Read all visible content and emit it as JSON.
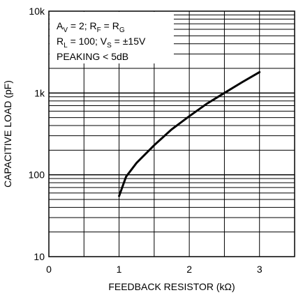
{
  "chart_data": {
    "type": "line",
    "title": "",
    "xlabel": "FEEDBACK RESISTOR (kΩ)",
    "ylabel": "CAPACITIVE LOAD (pF)",
    "xlim": [
      0,
      3.5
    ],
    "ylim": [
      10,
      10000
    ],
    "y_scale": "log",
    "grid": true,
    "x_ticks": [
      "0",
      "1",
      "2",
      "3"
    ],
    "x_tick_values": [
      0,
      1,
      2,
      3
    ],
    "y_ticks": [
      "10",
      "100",
      "1k",
      "10k"
    ],
    "y_tick_values": [
      10,
      100,
      1000,
      10000
    ],
    "annotation": {
      "line1": {
        "a": "A",
        "a_sub": "V",
        "b": " = 2; R",
        "b_sub": "F",
        "c": " = R",
        "c_sub": "G"
      },
      "line2": {
        "a": "R",
        "a_sub": "L",
        "b": " = 100; V",
        "b_sub": "S",
        "c": " = ±15V"
      },
      "line3": "PEAKING < 5dB"
    },
    "series": [
      {
        "x": [
          1.0,
          1.1,
          1.25,
          1.5,
          1.75,
          2.0,
          2.25,
          2.5,
          2.75,
          3.0
        ],
        "y": [
          55,
          95,
          140,
          230,
          360,
          520,
          740,
          1000,
          1350,
          1800
        ]
      }
    ]
  }
}
